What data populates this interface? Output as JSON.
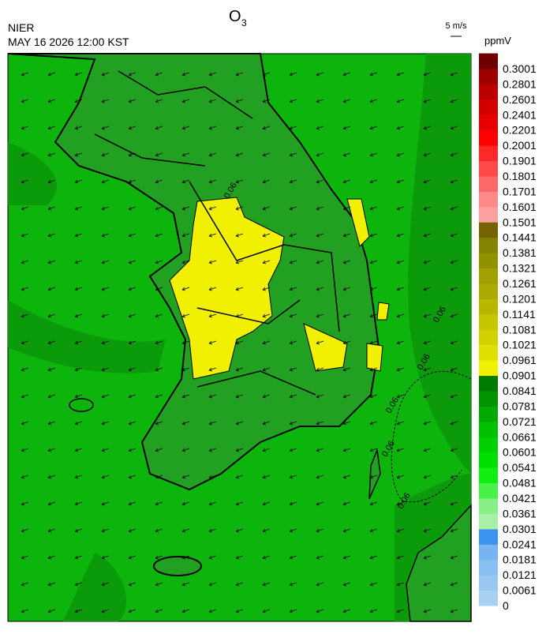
{
  "header": {
    "agency": "NIER",
    "datetime": "MAY 16 2026 12:00 KST",
    "title": "O",
    "title_subscript": "3",
    "wind_reference": "5 m/s"
  },
  "colorbar": {
    "unit": "ppmV",
    "labels": [
      0,
      0.0061,
      0.0121,
      0.0181,
      0.0241,
      0.0301,
      0.0361,
      0.0421,
      0.0481,
      0.0541,
      0.0601,
      0.0661,
      0.0721,
      0.0781,
      0.0841,
      0.0901,
      0.0961,
      0.1021,
      0.1081,
      0.1141,
      0.1201,
      0.1261,
      0.1321,
      0.1381,
      0.1441,
      0.1501,
      0.1601,
      0.1701,
      0.1801,
      0.1901,
      0.2001,
      0.2201,
      0.2401,
      0.2601,
      0.2801,
      0.3001
    ],
    "colors": [
      "#a8d0f0",
      "#98c8f0",
      "#88c0f0",
      "#78b4f0",
      "#3c94f0",
      "#a8f0a8",
      "#88f088",
      "#48f048",
      "#10f010",
      "#00e000",
      "#00d000",
      "#00c000",
      "#00aa00",
      "#009400",
      "#007a00",
      "#f0f000",
      "#e0e000",
      "#d2d200",
      "#c6c600",
      "#b8b800",
      "#aaaa00",
      "#a0a000",
      "#929200",
      "#848400",
      "#746400",
      "#ffa0a0",
      "#ff8888",
      "#ff6868",
      "#ff4848",
      "#ff2828",
      "#ff0000",
      "#e80000",
      "#d40000",
      "#bc0000",
      "#a00000",
      "#700000"
    ]
  },
  "contour_labels": [
    "0.06",
    "0.06",
    "0.06",
    "0.06",
    "0.06",
    "0.06"
  ]
}
